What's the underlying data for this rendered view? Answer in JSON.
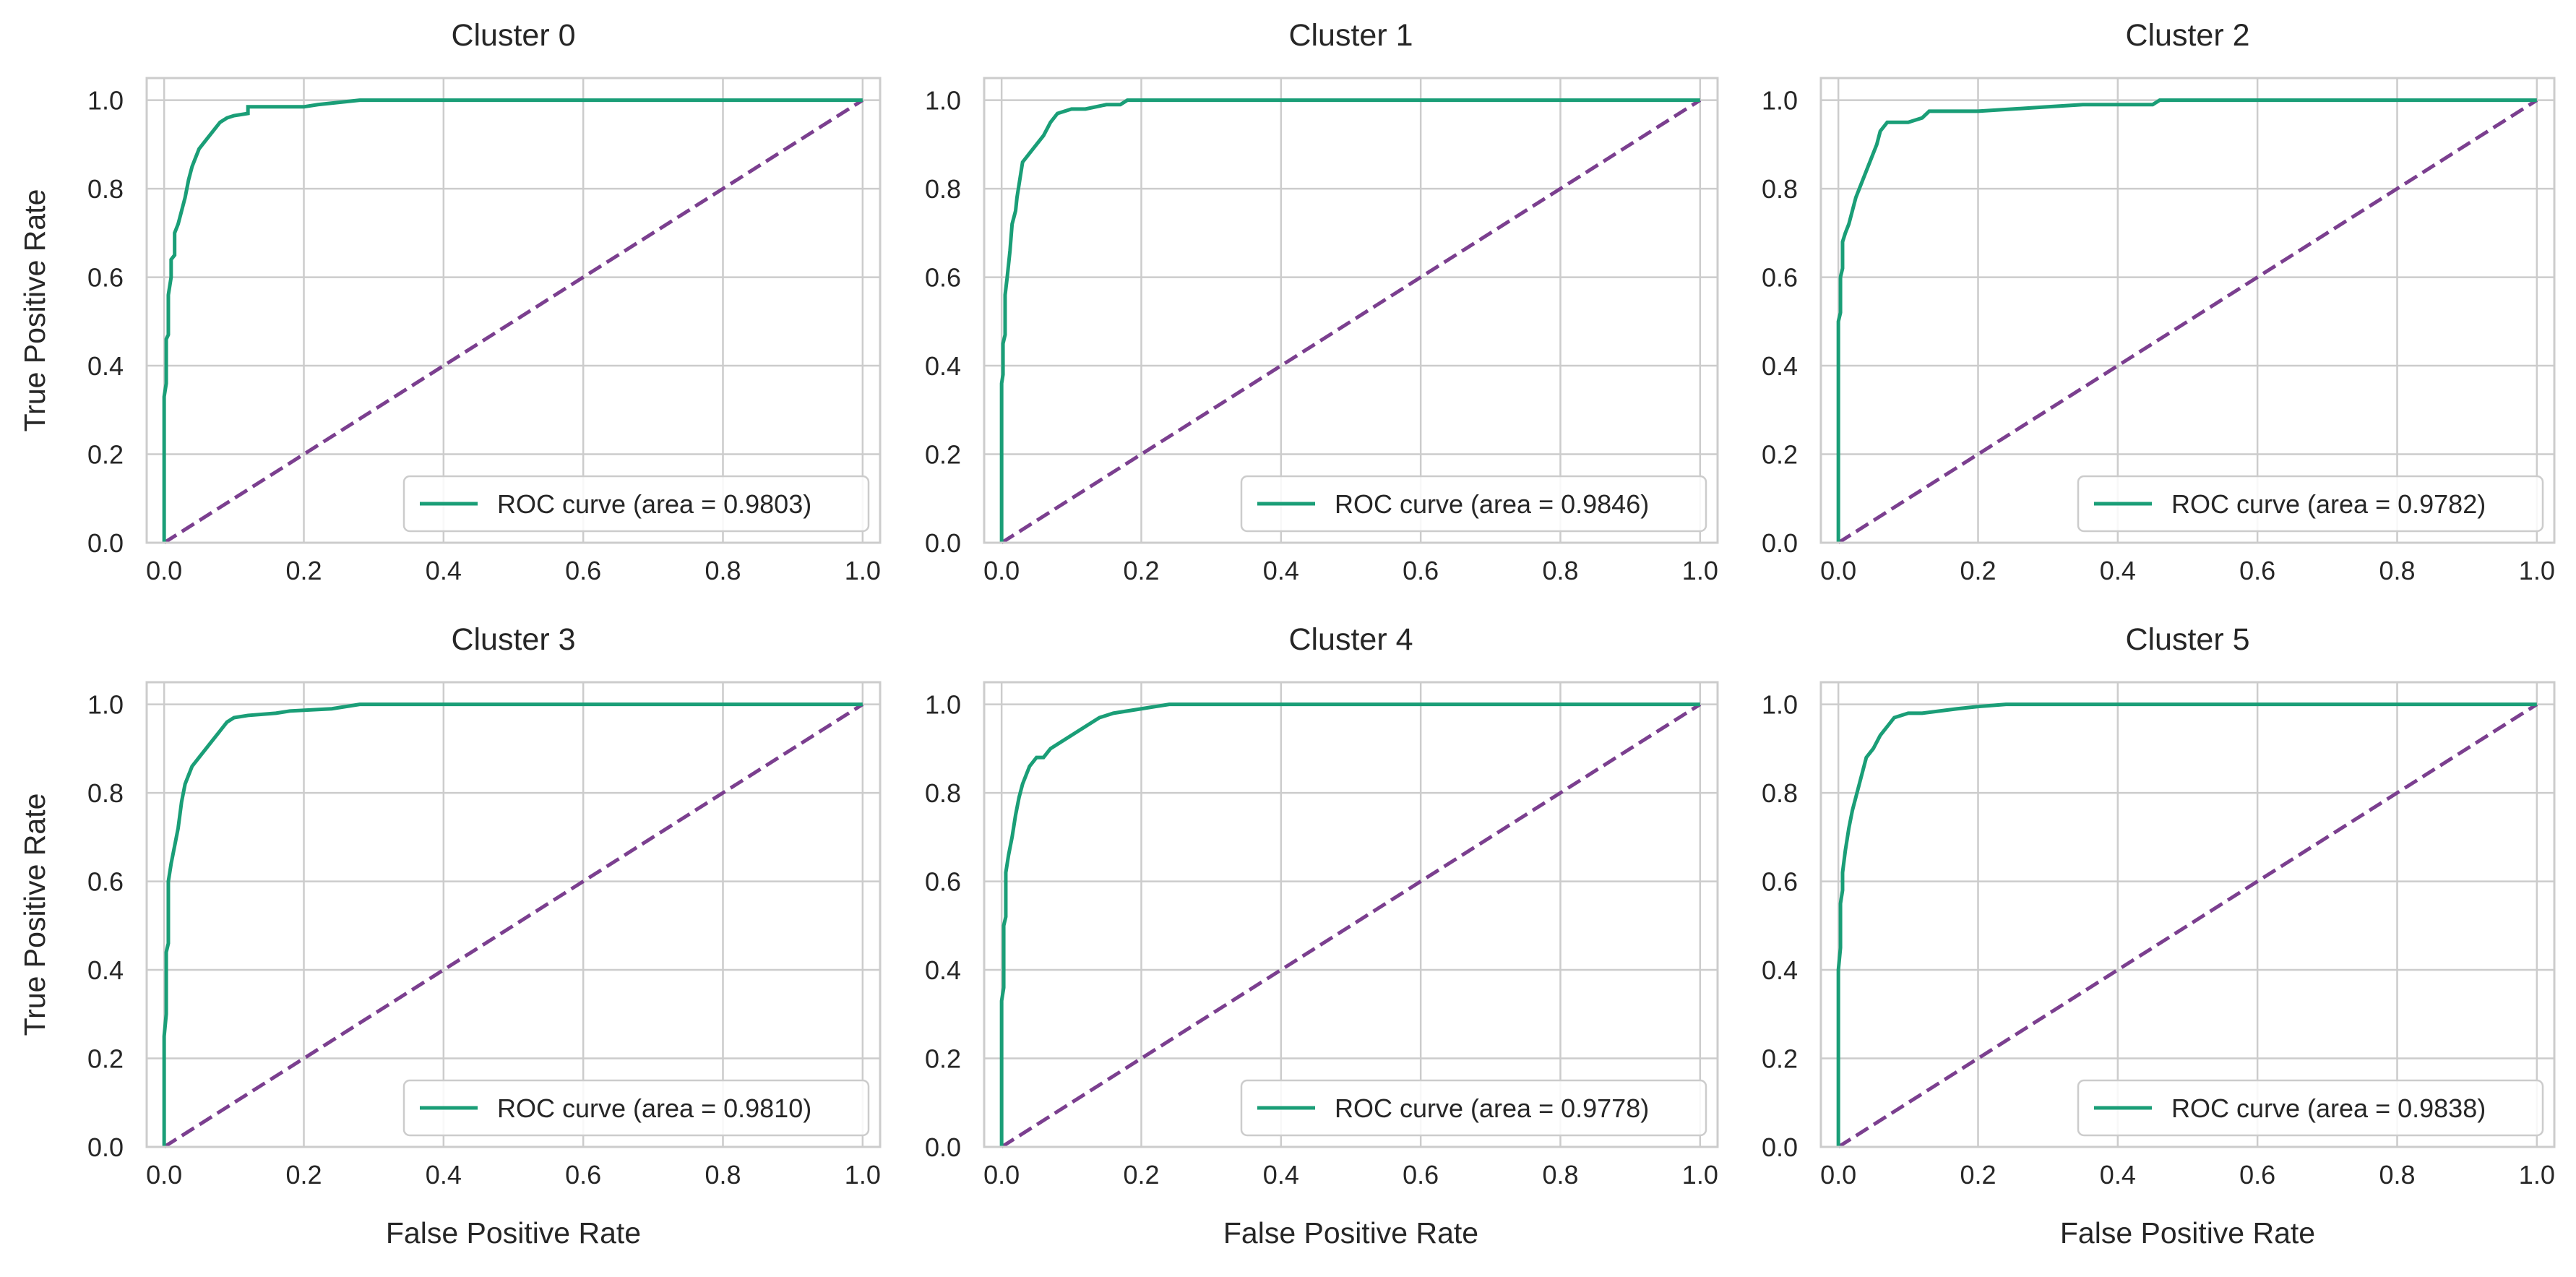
{
  "figure": {
    "ylabel": "True Positive Rate",
    "xlabel": "False Positive Rate",
    "colors": {
      "roc": "#1a9e77",
      "chance": "#7b3f8f",
      "grid": "#cccccc",
      "axes_edge": "#cccccc",
      "text": "#262626"
    }
  },
  "chart_data": [
    {
      "type": "line",
      "title": "Cluster 0",
      "xlabel": "",
      "ylabel": "True Positive Rate",
      "xlim": [
        -0.025,
        1.025
      ],
      "ylim": [
        0,
        1.05
      ],
      "xticks": [
        "0.0",
        "0.2",
        "0.4",
        "0.6",
        "0.8",
        "1.0"
      ],
      "yticks": [
        "0.0",
        "0.2",
        "0.4",
        "0.6",
        "0.8",
        "1.0"
      ],
      "grid": true,
      "legend_position": "lower right",
      "series": [
        {
          "name": "ROC curve (area = 0.9803)",
          "style": "solid",
          "x": [
            0.0,
            0.0,
            0.003,
            0.003,
            0.006,
            0.006,
            0.01,
            0.01,
            0.015,
            0.015,
            0.02,
            0.025,
            0.03,
            0.035,
            0.04,
            0.045,
            0.05,
            0.055,
            0.06,
            0.065,
            0.07,
            0.08,
            0.09,
            0.1,
            0.12,
            0.12,
            0.2,
            0.22,
            0.28,
            1.0
          ],
          "y": [
            0.0,
            0.33,
            0.36,
            0.46,
            0.47,
            0.56,
            0.6,
            0.64,
            0.65,
            0.7,
            0.72,
            0.75,
            0.78,
            0.82,
            0.85,
            0.87,
            0.89,
            0.9,
            0.91,
            0.92,
            0.93,
            0.95,
            0.96,
            0.965,
            0.97,
            0.985,
            0.985,
            0.99,
            1.0,
            1.0
          ]
        },
        {
          "name": "",
          "style": "dashed",
          "x": [
            0,
            1
          ],
          "y": [
            0,
            1
          ]
        }
      ]
    },
    {
      "type": "line",
      "title": "Cluster 1",
      "xlabel": "",
      "ylabel": "",
      "xlim": [
        -0.025,
        1.025
      ],
      "ylim": [
        0,
        1.05
      ],
      "xticks": [
        "0.0",
        "0.2",
        "0.4",
        "0.6",
        "0.8",
        "1.0"
      ],
      "yticks": [
        "0.0",
        "0.2",
        "0.4",
        "0.6",
        "0.8",
        "1.0"
      ],
      "grid": true,
      "legend_position": "lower right",
      "series": [
        {
          "name": "ROC curve (area = 0.9846)",
          "style": "solid",
          "x": [
            0.0,
            0.0,
            0.002,
            0.002,
            0.005,
            0.005,
            0.008,
            0.01,
            0.012,
            0.015,
            0.02,
            0.022,
            0.03,
            0.04,
            0.05,
            0.06,
            0.07,
            0.08,
            0.1,
            0.12,
            0.15,
            0.17,
            0.18,
            1.0
          ],
          "y": [
            0.0,
            0.36,
            0.38,
            0.45,
            0.47,
            0.56,
            0.6,
            0.63,
            0.66,
            0.72,
            0.75,
            0.78,
            0.86,
            0.88,
            0.9,
            0.92,
            0.95,
            0.97,
            0.98,
            0.98,
            0.99,
            0.99,
            1.0,
            1.0
          ]
        },
        {
          "name": "",
          "style": "dashed",
          "x": [
            0,
            1
          ],
          "y": [
            0,
            1
          ]
        }
      ]
    },
    {
      "type": "line",
      "title": "Cluster 2",
      "xlabel": "",
      "ylabel": "",
      "xlim": [
        -0.025,
        1.025
      ],
      "ylim": [
        0,
        1.05
      ],
      "xticks": [
        "0.0",
        "0.2",
        "0.4",
        "0.6",
        "0.8",
        "1.0"
      ],
      "yticks": [
        "0.0",
        "0.2",
        "0.4",
        "0.6",
        "0.8",
        "1.0"
      ],
      "grid": true,
      "legend_position": "lower right",
      "series": [
        {
          "name": "ROC curve (area = 0.9782)",
          "style": "solid",
          "x": [
            0.0,
            0.0,
            0.003,
            0.003,
            0.006,
            0.006,
            0.01,
            0.015,
            0.02,
            0.025,
            0.03,
            0.035,
            0.04,
            0.045,
            0.05,
            0.055,
            0.06,
            0.07,
            0.08,
            0.1,
            0.12,
            0.13,
            0.2,
            0.3,
            0.35,
            0.45,
            0.46,
            1.0
          ],
          "y": [
            0.0,
            0.5,
            0.52,
            0.6,
            0.62,
            0.68,
            0.7,
            0.72,
            0.75,
            0.78,
            0.8,
            0.82,
            0.84,
            0.86,
            0.88,
            0.9,
            0.93,
            0.95,
            0.95,
            0.95,
            0.96,
            0.975,
            0.975,
            0.985,
            0.99,
            0.99,
            1.0,
            1.0
          ]
        },
        {
          "name": "",
          "style": "dashed",
          "x": [
            0,
            1
          ],
          "y": [
            0,
            1
          ]
        }
      ]
    },
    {
      "type": "line",
      "title": "Cluster 3",
      "xlabel": "False Positive Rate",
      "ylabel": "True Positive Rate",
      "xlim": [
        -0.025,
        1.025
      ],
      "ylim": [
        0,
        1.05
      ],
      "xticks": [
        "0.0",
        "0.2",
        "0.4",
        "0.6",
        "0.8",
        "1.0"
      ],
      "yticks": [
        "0.0",
        "0.2",
        "0.4",
        "0.6",
        "0.8",
        "1.0"
      ],
      "grid": true,
      "legend_position": "lower right",
      "series": [
        {
          "name": "ROC curve (area = 0.9810)",
          "style": "solid",
          "x": [
            0.0,
            0.0,
            0.003,
            0.003,
            0.006,
            0.006,
            0.01,
            0.015,
            0.02,
            0.025,
            0.03,
            0.035,
            0.04,
            0.05,
            0.06,
            0.07,
            0.08,
            0.09,
            0.1,
            0.12,
            0.16,
            0.18,
            0.24,
            0.28,
            1.0
          ],
          "y": [
            0.0,
            0.25,
            0.3,
            0.44,
            0.46,
            0.6,
            0.64,
            0.68,
            0.72,
            0.78,
            0.82,
            0.84,
            0.86,
            0.88,
            0.9,
            0.92,
            0.94,
            0.96,
            0.97,
            0.975,
            0.98,
            0.985,
            0.99,
            1.0,
            1.0
          ]
        },
        {
          "name": "",
          "style": "dashed",
          "x": [
            0,
            1
          ],
          "y": [
            0,
            1
          ]
        }
      ]
    },
    {
      "type": "line",
      "title": "Cluster 4",
      "xlabel": "False Positive Rate",
      "ylabel": "",
      "xlim": [
        -0.025,
        1.025
      ],
      "ylim": [
        0,
        1.05
      ],
      "xticks": [
        "0.0",
        "0.2",
        "0.4",
        "0.6",
        "0.8",
        "1.0"
      ],
      "yticks": [
        "0.0",
        "0.2",
        "0.4",
        "0.6",
        "0.8",
        "1.0"
      ],
      "grid": true,
      "legend_position": "lower right",
      "series": [
        {
          "name": "ROC curve (area = 0.9778)",
          "style": "solid",
          "x": [
            0.0,
            0.0,
            0.003,
            0.003,
            0.006,
            0.006,
            0.01,
            0.015,
            0.02,
            0.025,
            0.03,
            0.04,
            0.05,
            0.06,
            0.07,
            0.08,
            0.1,
            0.12,
            0.14,
            0.16,
            0.2,
            0.22,
            0.24,
            1.0
          ],
          "y": [
            0.0,
            0.33,
            0.36,
            0.5,
            0.52,
            0.62,
            0.66,
            0.7,
            0.75,
            0.79,
            0.82,
            0.86,
            0.88,
            0.88,
            0.9,
            0.91,
            0.93,
            0.95,
            0.97,
            0.98,
            0.99,
            0.995,
            1.0,
            1.0
          ]
        },
        {
          "name": "",
          "style": "dashed",
          "x": [
            0,
            1
          ],
          "y": [
            0,
            1
          ]
        }
      ]
    },
    {
      "type": "line",
      "title": "Cluster 5",
      "xlabel": "False Positive Rate",
      "ylabel": "",
      "xlim": [
        -0.025,
        1.025
      ],
      "ylim": [
        0,
        1.05
      ],
      "xticks": [
        "0.0",
        "0.2",
        "0.4",
        "0.6",
        "0.8",
        "1.0"
      ],
      "yticks": [
        "0.0",
        "0.2",
        "0.4",
        "0.6",
        "0.8",
        "1.0"
      ],
      "grid": true,
      "legend_position": "lower right",
      "series": [
        {
          "name": "ROC curve (area = 0.9838)",
          "style": "solid",
          "x": [
            0.0,
            0.0,
            0.003,
            0.003,
            0.006,
            0.006,
            0.01,
            0.015,
            0.02,
            0.025,
            0.03,
            0.035,
            0.04,
            0.05,
            0.06,
            0.07,
            0.08,
            0.1,
            0.12,
            0.17,
            0.2,
            0.24,
            1.0
          ],
          "y": [
            0.0,
            0.4,
            0.45,
            0.55,
            0.58,
            0.62,
            0.67,
            0.72,
            0.76,
            0.79,
            0.82,
            0.85,
            0.88,
            0.9,
            0.93,
            0.95,
            0.97,
            0.98,
            0.98,
            0.99,
            0.995,
            1.0,
            1.0
          ]
        },
        {
          "name": "",
          "style": "dashed",
          "x": [
            0,
            1
          ],
          "y": [
            0,
            1
          ]
        }
      ]
    }
  ]
}
